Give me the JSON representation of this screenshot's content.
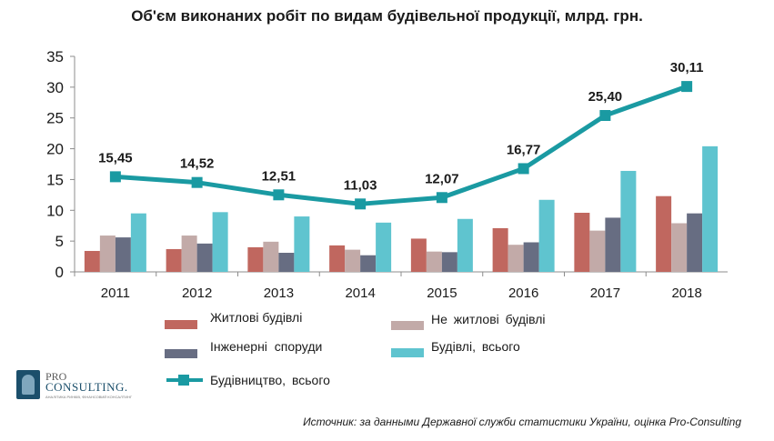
{
  "chart_data": {
    "type": "bar",
    "title": "Об'єм виконаних робіт по видам будівельної продукції, млрд. грн.",
    "categories": [
      "2011",
      "2012",
      "2013",
      "2014",
      "2015",
      "2016",
      "2017",
      "2018"
    ],
    "ylim": [
      0,
      35
    ],
    "yticks": [
      0,
      5,
      10,
      15,
      20,
      25,
      30,
      35
    ],
    "grid": false,
    "legend_position": "bottom",
    "series": [
      {
        "name": "Житлові будівлі",
        "type": "bar",
        "color": "#c0675f",
        "values": [
          3.4,
          3.7,
          4.0,
          4.3,
          5.4,
          7.1,
          9.6,
          12.3
        ]
      },
      {
        "name": "Не житлові будівлі",
        "type": "bar",
        "color": "#c2aaa8",
        "values": [
          5.9,
          5.9,
          4.9,
          3.6,
          3.3,
          4.4,
          6.7,
          7.9
        ]
      },
      {
        "name": "Інженерні споруди",
        "type": "bar",
        "color": "#676d82",
        "values": [
          5.6,
          4.6,
          3.1,
          2.7,
          3.2,
          4.8,
          8.8,
          9.5
        ]
      },
      {
        "name": "Будівлі, всього",
        "type": "bar",
        "color": "#5fc4cf",
        "values": [
          9.5,
          9.7,
          9.0,
          8.0,
          8.6,
          11.7,
          16.4,
          20.4
        ]
      },
      {
        "name": "Будівництво, всього",
        "type": "line",
        "color": "#1a9aa2",
        "values": [
          15.45,
          14.52,
          12.51,
          11.03,
          12.07,
          16.77,
          25.4,
          30.11
        ],
        "data_labels": [
          "15,45",
          "14,52",
          "12,51",
          "11,03",
          "12,07",
          "16,77",
          "25,40",
          "30,11"
        ]
      }
    ]
  },
  "legend": {
    "items": [
      {
        "label": "Житлові будівлі",
        "color": "#c0675f",
        "kind": "bar"
      },
      {
        "label": "Не житлові будівлі",
        "color": "#c2aaa8",
        "kind": "bar"
      },
      {
        "label": "Інженерні споруди",
        "color": "#676d82",
        "kind": "bar"
      },
      {
        "label": "Будівлі, всього",
        "color": "#5fc4cf",
        "kind": "bar"
      },
      {
        "label": "Будівництво, всього",
        "color": "#1a9aa2",
        "kind": "line"
      }
    ]
  },
  "logo": {
    "line1": "PRO",
    "line2": "CONSULTING.",
    "tagline": "АНАЛІТИКА РИНКІВ, ФІНАНСОВИЙ КОНСАЛТИНГ"
  },
  "source": "Источник: за данными Державної служби статистики України, оцінка Pro-Consulting"
}
